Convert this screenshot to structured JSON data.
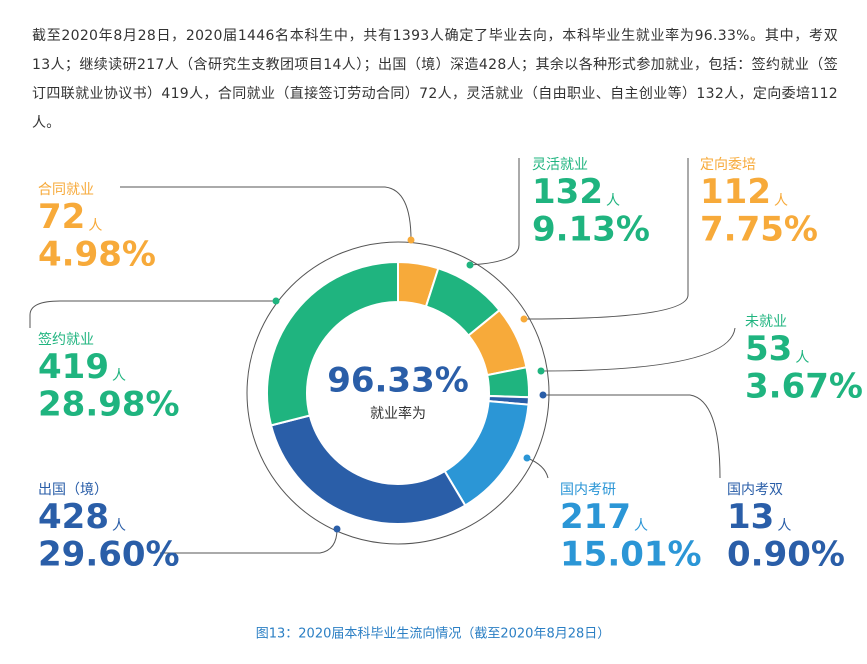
{
  "intro": "截至2020年8月28日，2020届1446名本科生中，共有1393人确定了毕业去向，本科毕业生就业率为96.33%。其中，考双13人；继续读研217人（含研究生支教团项目14人）；出国（境）深造428人；其余以各种形式参加就业，包括：签约就业（签订四联就业协议书）419人，合同就业（直接签订劳动合同）72人，灵活就业（自由职业、自主创业等）132人，定向委培112人。",
  "chart_data": {
    "type": "donut",
    "center_label": "96.33%",
    "center_text": "就业率为",
    "unit": "人",
    "categories": [
      "合同就业",
      "灵活就业",
      "定向委培",
      "未就业",
      "国内考双",
      "国内考研",
      "出国（境）",
      "签约就业"
    ],
    "values": [
      72,
      132,
      112,
      53,
      13,
      217,
      428,
      419
    ],
    "percentages": [
      4.98,
      9.13,
      7.75,
      3.67,
      0.9,
      15.01,
      29.6,
      28.98
    ],
    "percentage_labels": [
      "4.98%",
      "9.13%",
      "7.75%",
      "3.67%",
      "0.90%",
      "15.01%",
      "29.60%",
      "28.98%"
    ],
    "colors": [
      "#f7aa3a",
      "#1fb47f",
      "#f7aa3a",
      "#1fb47f",
      "#2a5ea8",
      "#2b96d6",
      "#2a5ea8",
      "#1fb47f"
    ],
    "caption": "图13：2020届本科毕业生流向情况（截至2020年8月28日）"
  }
}
